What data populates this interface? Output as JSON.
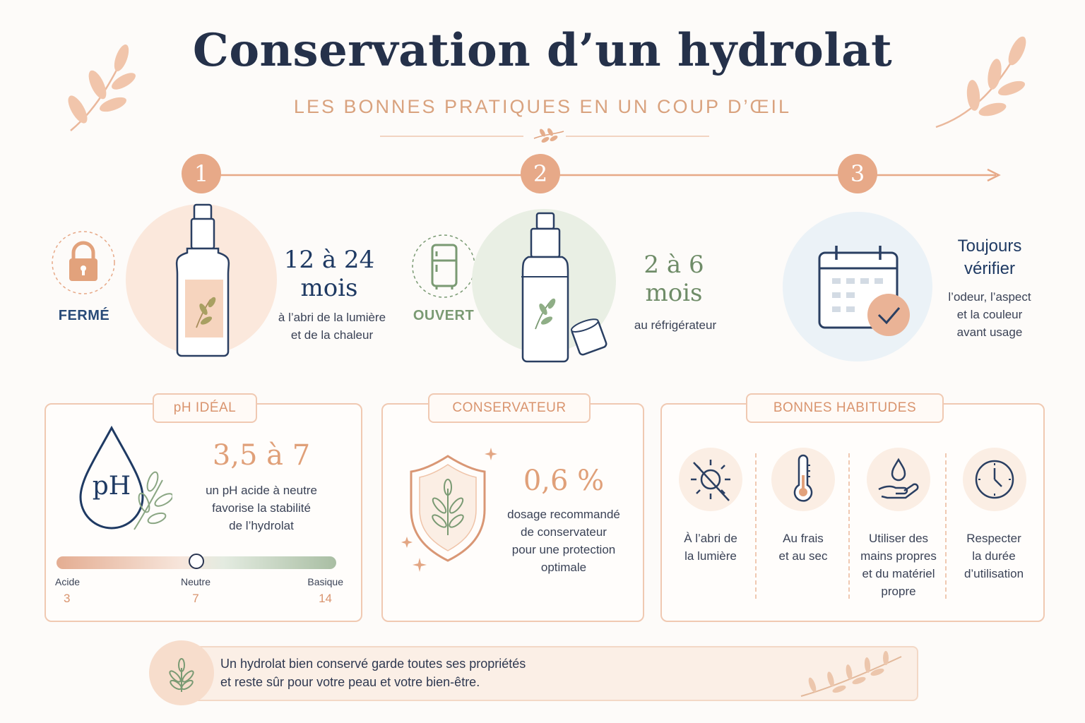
{
  "header": {
    "title": "Conservation d’un hydrolat",
    "subtitle": "LES BONNES PRATIQUES EN UN COUP D’ŒIL"
  },
  "steps": [
    {
      "number": "1",
      "state_label": "FERMÉ",
      "duration_line1": "12 à 24",
      "duration_line2": "mois",
      "desc_line1": "à l’abri de la lumière",
      "desc_line2": "et de la chaleur",
      "icon": "lock-icon"
    },
    {
      "number": "2",
      "state_label": "OUVERT",
      "duration_line1": "2 à 6",
      "duration_line2": "mois",
      "desc_line1": "au réfrigérateur",
      "icon": "fridge-icon"
    },
    {
      "number": "3",
      "title_line1": "Toujours",
      "title_line2": "vérifier",
      "desc_line1": "l’odeur, l’aspect",
      "desc_line2": "et la couleur",
      "desc_line3": "avant usage",
      "icon": "calendar-check-icon"
    }
  ],
  "ph_panel": {
    "tag": "pH IDÉAL",
    "drop_label": "pH",
    "value": "3,5 à 7",
    "desc_line1": "un pH acide à neutre",
    "desc_line2": "favorise la stabilité",
    "desc_line3": "de l’hydrolat",
    "scale": {
      "min_label": "Acide",
      "min_value": "3",
      "mid_label": "Neutre",
      "mid_value": "7",
      "max_label": "Basique",
      "max_value": "14",
      "marker_value": 7
    }
  },
  "preservative_panel": {
    "tag": "CONSERVATEUR",
    "value": "0,6 %",
    "desc_line1": "dosage recommandé",
    "desc_line2": "de conservateur",
    "desc_line3": "pour une protection",
    "desc_line4": "optimale"
  },
  "habits_panel": {
    "tag": "BONNES HABITUDES",
    "items": [
      {
        "icon": "no-sun-icon",
        "line1": "À l’abri de",
        "line2": "la lumière"
      },
      {
        "icon": "thermometer-icon",
        "line1": "Au frais",
        "line2": "et au sec"
      },
      {
        "icon": "clean-hands-icon",
        "line1": "Utiliser des",
        "line2": "mains propres",
        "line3": "et du matériel",
        "line4": "propre"
      },
      {
        "icon": "clock-icon",
        "line1": "Respecter",
        "line2": "la durée",
        "line3": "d’utilisation"
      }
    ]
  },
  "footer": {
    "line1": "Un hydrolat bien conservé garde toutes ses propriétés",
    "line2": "et reste sûr pour votre peau et votre bien-être."
  },
  "colors": {
    "peach": "#e7a988",
    "navy": "#1f3a63",
    "sage": "#7a9a73",
    "background": "#fdfbf9"
  }
}
